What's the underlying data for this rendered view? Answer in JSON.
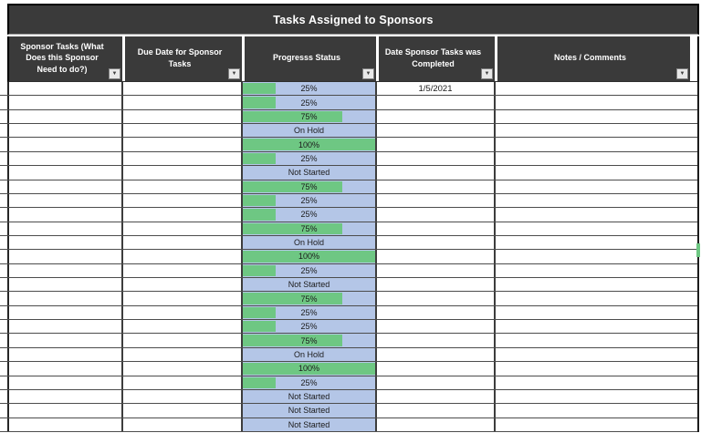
{
  "colors": {
    "header_bg": "#3a3a3a",
    "bar_green": "#6ec783",
    "progress_cell_blue": "#b4c6e7",
    "gridline": "#4c4c4c"
  },
  "table": {
    "title": "Tasks Assigned to Sponsors",
    "filter_icon": "▼",
    "columns": [
      {
        "label": "Sponsor Tasks (What Does this Sponsor Need to do?)"
      },
      {
        "label": "Due Date for Sponsor Tasks"
      },
      {
        "label": "Progresss Status"
      },
      {
        "label": "Date Sponsor Tasks was Completed"
      },
      {
        "label": "Notes / Comments"
      }
    ],
    "rows": [
      {
        "sponsor_task": "",
        "due_date": "",
        "progress": "25%",
        "bar_percent": 25,
        "date_completed": "1/5/2021",
        "notes": ""
      },
      {
        "sponsor_task": "",
        "due_date": "",
        "progress": "25%",
        "bar_percent": 25,
        "date_completed": "",
        "notes": ""
      },
      {
        "sponsor_task": "",
        "due_date": "",
        "progress": "75%",
        "bar_percent": 75,
        "date_completed": "",
        "notes": ""
      },
      {
        "sponsor_task": "",
        "due_date": "",
        "progress": "On Hold",
        "bar_percent": 0,
        "date_completed": "",
        "notes": ""
      },
      {
        "sponsor_task": "",
        "due_date": "",
        "progress": "100%",
        "bar_percent": 100,
        "date_completed": "",
        "notes": ""
      },
      {
        "sponsor_task": "",
        "due_date": "",
        "progress": "25%",
        "bar_percent": 25,
        "date_completed": "",
        "notes": ""
      },
      {
        "sponsor_task": "",
        "due_date": "",
        "progress": "Not Started",
        "bar_percent": 0,
        "date_completed": "",
        "notes": ""
      },
      {
        "sponsor_task": "",
        "due_date": "",
        "progress": "75%",
        "bar_percent": 75,
        "date_completed": "",
        "notes": ""
      },
      {
        "sponsor_task": "",
        "due_date": "",
        "progress": "25%",
        "bar_percent": 25,
        "date_completed": "",
        "notes": ""
      },
      {
        "sponsor_task": "",
        "due_date": "",
        "progress": "25%",
        "bar_percent": 25,
        "date_completed": "",
        "notes": ""
      },
      {
        "sponsor_task": "",
        "due_date": "",
        "progress": "75%",
        "bar_percent": 75,
        "date_completed": "",
        "notes": ""
      },
      {
        "sponsor_task": "",
        "due_date": "",
        "progress": "On Hold",
        "bar_percent": 0,
        "date_completed": "",
        "notes": ""
      },
      {
        "sponsor_task": "",
        "due_date": "",
        "progress": "100%",
        "bar_percent": 100,
        "date_completed": "",
        "notes": ""
      },
      {
        "sponsor_task": "",
        "due_date": "",
        "progress": "25%",
        "bar_percent": 25,
        "date_completed": "",
        "notes": ""
      },
      {
        "sponsor_task": "",
        "due_date": "",
        "progress": "Not Started",
        "bar_percent": 0,
        "date_completed": "",
        "notes": ""
      },
      {
        "sponsor_task": "",
        "due_date": "",
        "progress": "75%",
        "bar_percent": 75,
        "date_completed": "",
        "notes": ""
      },
      {
        "sponsor_task": "",
        "due_date": "",
        "progress": "25%",
        "bar_percent": 25,
        "date_completed": "",
        "notes": ""
      },
      {
        "sponsor_task": "",
        "due_date": "",
        "progress": "25%",
        "bar_percent": 25,
        "date_completed": "",
        "notes": ""
      },
      {
        "sponsor_task": "",
        "due_date": "",
        "progress": "75%",
        "bar_percent": 75,
        "date_completed": "",
        "notes": ""
      },
      {
        "sponsor_task": "",
        "due_date": "",
        "progress": "On Hold",
        "bar_percent": 0,
        "date_completed": "",
        "notes": ""
      },
      {
        "sponsor_task": "",
        "due_date": "",
        "progress": "100%",
        "bar_percent": 100,
        "date_completed": "",
        "notes": ""
      },
      {
        "sponsor_task": "",
        "due_date": "",
        "progress": "25%",
        "bar_percent": 25,
        "date_completed": "",
        "notes": ""
      },
      {
        "sponsor_task": "",
        "due_date": "",
        "progress": "Not Started",
        "bar_percent": 0,
        "date_completed": "",
        "notes": ""
      },
      {
        "sponsor_task": "",
        "due_date": "",
        "progress": "Not Started",
        "bar_percent": 0,
        "date_completed": "",
        "notes": ""
      },
      {
        "sponsor_task": "",
        "due_date": "",
        "progress": "Not Started",
        "bar_percent": 0,
        "date_completed": "",
        "notes": ""
      }
    ]
  }
}
